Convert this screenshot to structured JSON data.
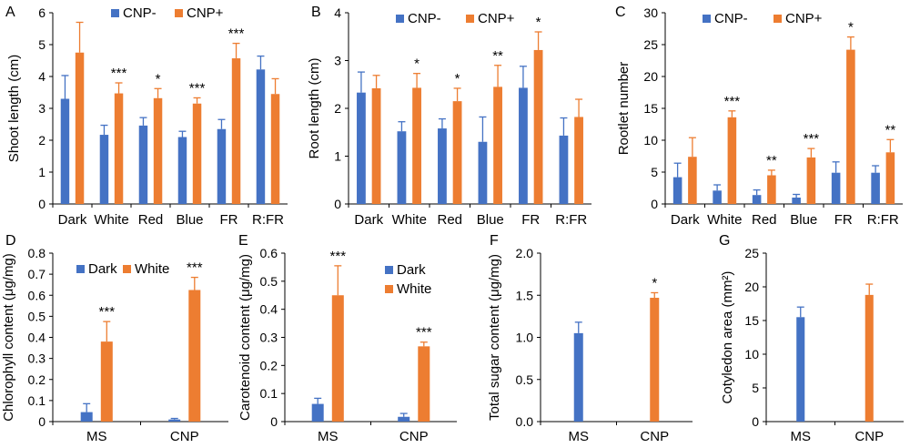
{
  "colors": {
    "blue": "#4472c4",
    "orange": "#ed7d31",
    "axis": "#000000"
  },
  "chart_data": [
    {
      "panel": "A",
      "type": "bar",
      "ylabel": "Shoot length (cm)",
      "ylim": [
        0,
        6
      ],
      "yticks": [
        0,
        1,
        2,
        3,
        4,
        5,
        6
      ],
      "categories": [
        "Dark",
        "White",
        "Red",
        "Blue",
        "FR",
        "R:FR"
      ],
      "legend": [
        "CNP-",
        "CNP+"
      ],
      "legend_position": "top",
      "series": [
        {
          "name": "CNP-",
          "values": [
            3.3,
            2.17,
            2.46,
            2.1,
            2.35,
            4.22
          ],
          "errors": [
            0.73,
            0.3,
            0.25,
            0.18,
            0.3,
            0.42
          ]
        },
        {
          "name": "CNP+",
          "values": [
            4.75,
            3.47,
            3.32,
            3.15,
            4.57,
            3.45
          ],
          "errors": [
            0.95,
            0.33,
            0.3,
            0.18,
            0.47,
            0.48
          ]
        }
      ],
      "annotations": [
        "",
        "***",
        "*",
        "***",
        "***",
        ""
      ]
    },
    {
      "panel": "B",
      "type": "bar",
      "ylabel": "Root length (cm)",
      "ylim": [
        0,
        4
      ],
      "yticks": [
        0,
        1,
        2,
        3,
        4
      ],
      "categories": [
        "Dark",
        "White",
        "Red",
        "Blue",
        "FR",
        "R:FR"
      ],
      "legend": [
        "CNP-",
        "CNP+"
      ],
      "legend_position": "top",
      "series": [
        {
          "name": "CNP-",
          "values": [
            2.33,
            1.52,
            1.58,
            1.3,
            2.43,
            1.43
          ],
          "errors": [
            0.43,
            0.2,
            0.2,
            0.52,
            0.45,
            0.37
          ]
        },
        {
          "name": "CNP+",
          "values": [
            2.42,
            2.43,
            2.15,
            2.45,
            3.22,
            1.82
          ],
          "errors": [
            0.27,
            0.3,
            0.27,
            0.45,
            0.38,
            0.37
          ]
        }
      ],
      "annotations": [
        "",
        "*",
        "*",
        "**",
        "*",
        ""
      ]
    },
    {
      "panel": "C",
      "type": "bar",
      "ylabel": "Rootlet number",
      "ylim": [
        0,
        30
      ],
      "yticks": [
        0,
        5,
        10,
        15,
        20,
        25,
        30
      ],
      "categories": [
        "Dark",
        "White",
        "Red",
        "Blue",
        "FR",
        "R:FR"
      ],
      "legend": [
        "CNP-",
        "CNP+"
      ],
      "legend_position": "top",
      "series": [
        {
          "name": "CNP-",
          "values": [
            4.2,
            2.1,
            1.4,
            1.0,
            4.9,
            4.9
          ],
          "errors": [
            2.2,
            0.9,
            0.8,
            0.5,
            1.7,
            1.1
          ]
        },
        {
          "name": "CNP+",
          "values": [
            7.4,
            13.6,
            4.5,
            7.3,
            24.2,
            8.1
          ],
          "errors": [
            3.0,
            1.0,
            0.8,
            1.4,
            2.0,
            2.0
          ]
        }
      ],
      "annotations": [
        "",
        "***",
        "**",
        "***",
        "*",
        "**"
      ]
    },
    {
      "panel": "D",
      "type": "bar",
      "ylabel": "Chlorophyll content (μg/mg)",
      "ylim": [
        0,
        0.8
      ],
      "yticks": [
        0,
        0.1,
        0.2,
        0.3,
        0.4,
        0.5,
        0.6,
        0.7,
        0.8
      ],
      "categories": [
        "MS",
        "CNP"
      ],
      "legend": [
        "Dark",
        "White"
      ],
      "legend_position": "top",
      "series": [
        {
          "name": "Dark",
          "values": [
            0.045,
            0.01
          ],
          "errors": [
            0.04,
            0.005
          ]
        },
        {
          "name": "White",
          "values": [
            0.38,
            0.625
          ],
          "errors": [
            0.095,
            0.06
          ]
        }
      ],
      "annotations": [
        "***",
        "***"
      ]
    },
    {
      "panel": "E",
      "type": "bar",
      "ylabel": "Carotenoid content (μg/mg)",
      "ylim": [
        0,
        0.6
      ],
      "yticks": [
        0,
        0.1,
        0.2,
        0.3,
        0.4,
        0.5,
        0.6
      ],
      "categories": [
        "MS",
        "CNP"
      ],
      "legend": [
        "Dark",
        "White"
      ],
      "legend_position": "top-right",
      "series": [
        {
          "name": "Dark",
          "values": [
            0.063,
            0.017
          ],
          "errors": [
            0.02,
            0.012
          ]
        },
        {
          "name": "White",
          "values": [
            0.45,
            0.268
          ],
          "errors": [
            0.105,
            0.015
          ]
        }
      ],
      "annotations": [
        "***",
        "***"
      ]
    },
    {
      "panel": "F",
      "type": "bar",
      "ylabel": "Total sugar content (μg/mg)",
      "ylim": [
        0,
        2.0
      ],
      "yticks": [
        "0.0",
        "0.5",
        "1.0",
        "1.5",
        "2.0"
      ],
      "categories": [
        "MS",
        "CNP"
      ],
      "series": [
        {
          "values": [
            1.05,
            1.47
          ],
          "errors": [
            0.13,
            0.06
          ],
          "colors": [
            "#4472c4",
            "#ed7d31"
          ]
        }
      ],
      "annotations": [
        "",
        "*"
      ]
    },
    {
      "panel": "G",
      "type": "bar",
      "ylabel": "Cotyledon area (mm²)",
      "ylim": [
        0,
        25
      ],
      "yticks": [
        0,
        5,
        10,
        15,
        20,
        25
      ],
      "categories": [
        "MS",
        "CNP"
      ],
      "series": [
        {
          "values": [
            15.5,
            18.8
          ],
          "errors": [
            1.5,
            1.6
          ],
          "colors": [
            "#4472c4",
            "#ed7d31"
          ]
        }
      ],
      "annotations": [
        "",
        ""
      ]
    }
  ]
}
